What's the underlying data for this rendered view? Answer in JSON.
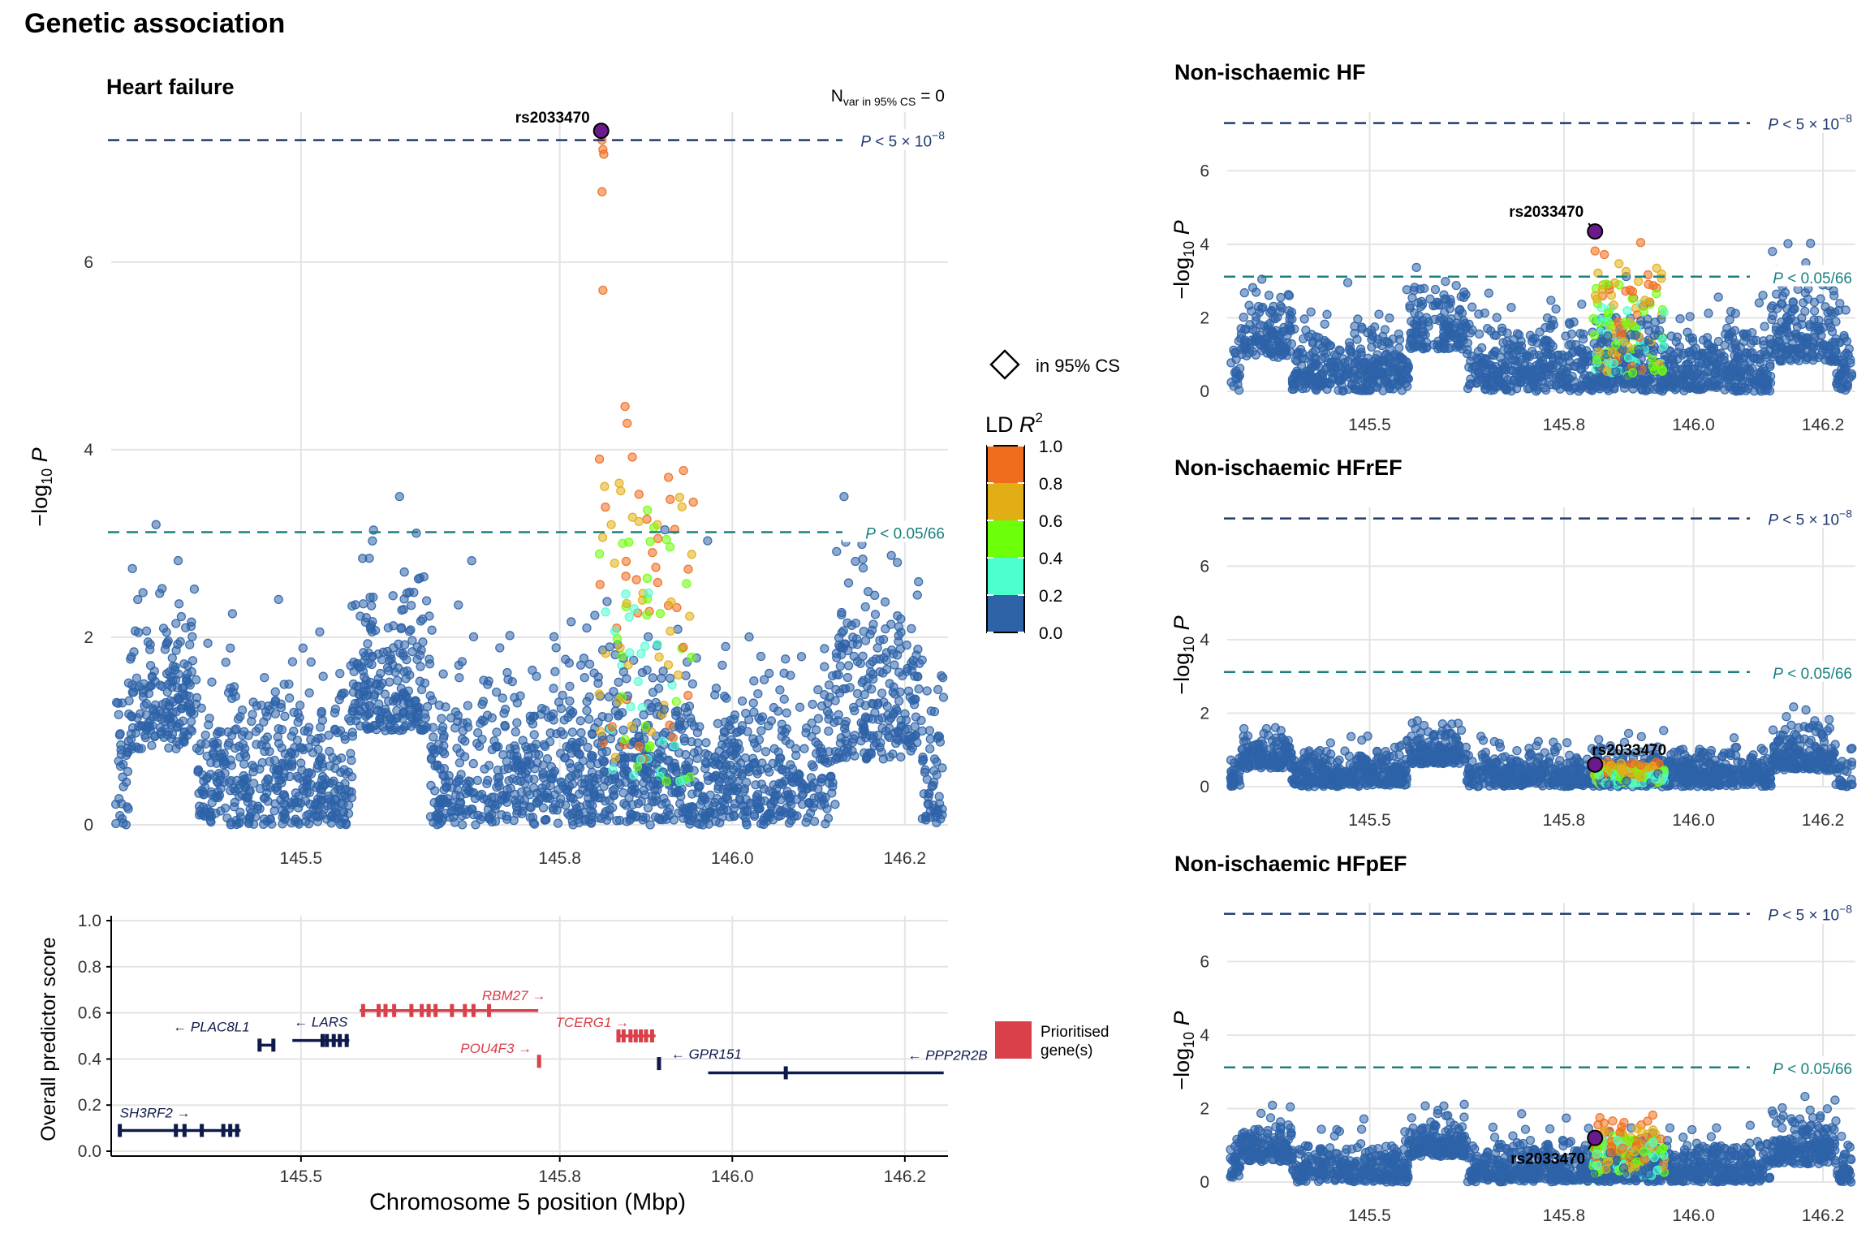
{
  "page_title": "Genetic association",
  "colors": {
    "ld_0": "#2E63A8",
    "ld_2": "#4CFFCF",
    "ld_4": "#6EFF0A",
    "ld_6": "#E2AE16",
    "ld_8": "#F06D1E",
    "lead": "#6A1A8A",
    "gw": "#1F3B70",
    "bonf": "#1B8080",
    "prioritised": "#D9404A",
    "other_gene": "#0E1A4A"
  },
  "legend": {
    "cs_label": "in 95% CS",
    "ld_title_main": "LD ",
    "ld_title_var": "R",
    "ld_title_sup": "2",
    "ld_ticks": [
      "1.0",
      "0.8",
      "0.6",
      "0.4",
      "0.2",
      "0.0"
    ],
    "prioritised_line1": "Prioritised",
    "prioritised_line2": "gene(s)"
  },
  "chart_data": [
    {
      "type": "scatter",
      "title": "Heart failure",
      "ylabel": "−log10 P",
      "xlim": [
        145.28,
        146.25
      ],
      "ylim": [
        0,
        7.6
      ],
      "yticks": [
        "0",
        "2",
        "4",
        "6"
      ],
      "xticks": [
        "145.5",
        "145.8",
        "146.0",
        "146.2"
      ],
      "grid": true,
      "annotation_main": "N",
      "annotation_sub": "var in 95% CS",
      "annotation_tail": " = 0",
      "thresholds": [
        {
          "label_p": "P",
          "label_rest": " < 5 × 10",
          "label_sup": "−8",
          "y": 7.3
        },
        {
          "label_p": "P",
          "label_rest": " < 0.05/66",
          "y": 3.12
        }
      ],
      "lead_snp": {
        "label": "rs2033470",
        "x": 145.848,
        "y": 7.4
      }
    },
    {
      "type": "scatter",
      "title": "Non-ischaemic HF",
      "ylabel": "−log10 P",
      "xlim": [
        145.28,
        146.25
      ],
      "ylim": [
        0,
        7.6
      ],
      "yticks": [
        "0",
        "2",
        "4",
        "6"
      ],
      "xticks": [
        "145.5",
        "145.8",
        "146.0",
        "146.2"
      ],
      "grid": true,
      "thresholds": [
        {
          "label_p": "P",
          "label_rest": " < 5 × 10",
          "label_sup": "−8",
          "y": 7.3
        },
        {
          "label_p": "P",
          "label_rest": " < 0.05/66",
          "y": 3.12
        }
      ],
      "lead_snp": {
        "label": "rs2033470",
        "x": 145.848,
        "y": 4.35
      }
    },
    {
      "type": "scatter",
      "title": "Non-ischaemic HFrEF",
      "ylabel": "−log10 P",
      "xlim": [
        145.28,
        146.25
      ],
      "ylim": [
        0,
        7.6
      ],
      "yticks": [
        "0",
        "2",
        "4",
        "6"
      ],
      "xticks": [
        "145.5",
        "145.8",
        "146.0",
        "146.2"
      ],
      "grid": true,
      "thresholds": [
        {
          "label_p": "P",
          "label_rest": " < 5 × 10",
          "label_sup": "−8",
          "y": 7.3
        },
        {
          "label_p": "P",
          "label_rest": " < 0.05/66",
          "y": 3.12
        }
      ],
      "lead_snp": {
        "label": "rs2033470",
        "x": 145.848,
        "y": 0.6
      }
    },
    {
      "type": "scatter",
      "title": "Non-ischaemic HFpEF",
      "ylabel": "−log10 P",
      "xlim": [
        145.28,
        146.25
      ],
      "ylim": [
        0,
        7.6
      ],
      "yticks": [
        "0",
        "2",
        "4",
        "6"
      ],
      "xticks": [
        "145.5",
        "145.8",
        "146.0",
        "146.2"
      ],
      "grid": true,
      "thresholds": [
        {
          "label_p": "P",
          "label_rest": " < 5 × 10",
          "label_sup": "−8",
          "y": 7.3
        },
        {
          "label_p": "P",
          "label_rest": " < 0.05/66",
          "y": 3.12
        }
      ],
      "lead_snp": {
        "label": "rs2033470",
        "x": 145.848,
        "y": 1.2
      }
    },
    {
      "type": "gene-track",
      "xlabel": "Chromosome 5 position (Mbp)",
      "ylabel": "Overall predictor score",
      "xlim": [
        145.28,
        146.25
      ],
      "ylim": [
        0,
        1.0
      ],
      "yticks": [
        "0.0",
        "0.2",
        "0.4",
        "0.6",
        "0.8",
        "1.0"
      ],
      "xticks": [
        "145.5",
        "145.8",
        "146.0",
        "146.2"
      ],
      "genes": [
        {
          "name": "SH3RF2",
          "strand": "+",
          "start": 145.29,
          "end": 145.43,
          "score": 0.09,
          "prioritised": false,
          "exons": [
            145.29,
            145.355,
            145.365,
            145.385,
            145.41,
            145.418,
            145.426
          ]
        },
        {
          "name": "PLAC8L1",
          "strand": "-",
          "start": 145.45,
          "end": 145.47,
          "score": 0.46,
          "prioritised": false,
          "exons": [
            145.452,
            145.468
          ]
        },
        {
          "name": "LARS",
          "strand": "-",
          "start": 145.49,
          "end": 145.556,
          "score": 0.48,
          "prioritised": false,
          "exons": [
            145.525,
            145.53,
            145.538,
            145.545,
            145.553
          ]
        },
        {
          "name": "RBM27",
          "strand": "+",
          "start": 145.568,
          "end": 145.775,
          "score": 0.61,
          "prioritised": true,
          "exons": [
            145.572,
            145.59,
            145.598,
            145.608,
            145.628,
            145.64,
            145.648,
            145.656,
            145.675,
            145.69,
            145.7,
            145.718
          ]
        },
        {
          "name": "POU4F3",
          "strand": "+",
          "start": 145.775,
          "end": 145.777,
          "score": 0.39,
          "prioritised": true,
          "exons": [
            145.776
          ]
        },
        {
          "name": "TCERG1",
          "strand": "+",
          "start": 145.866,
          "end": 145.911,
          "score": 0.5,
          "prioritised": true,
          "exons": [
            145.868,
            145.874,
            145.882,
            145.888,
            145.894,
            145.9,
            145.907
          ]
        },
        {
          "name": "GPR151",
          "strand": "-",
          "start": 145.914,
          "end": 145.916,
          "score": 0.38,
          "prioritised": false,
          "exons": [
            145.915
          ]
        },
        {
          "name": "PPP2R2B",
          "strand": "-",
          "start": 145.972,
          "end": 146.245,
          "score": 0.34,
          "prioritised": false,
          "exons": [
            146.062
          ]
        }
      ]
    }
  ]
}
